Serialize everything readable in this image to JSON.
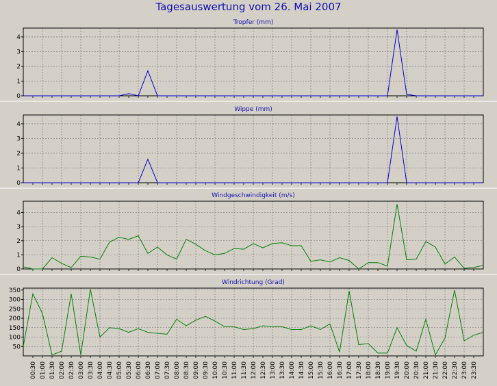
{
  "title": "Tagesauswertung vom 26. Mai 2007",
  "x_tick_labels": [
    "00:30",
    "01:00",
    "01:30",
    "02:00",
    "02:30",
    "03:00",
    "03:30",
    "04:00",
    "04:30",
    "05:00",
    "05:30",
    "06:00",
    "06:30",
    "07:00",
    "07:30",
    "08:00",
    "08:30",
    "09:00",
    "09:30",
    "10:00",
    "10:30",
    "11:00",
    "11:30",
    "12:00",
    "12:30",
    "13:00",
    "13:30",
    "14:00",
    "14:30",
    "15:00",
    "15:30",
    "16:00",
    "16:30",
    "17:00",
    "17:30",
    "18:00",
    "18:30",
    "19:00",
    "19:30",
    "20:00",
    "20:30",
    "21:00",
    "21:30",
    "22:00",
    "22:30",
    "23:00",
    "23:30"
  ],
  "colors": {
    "blue_series": "#0000cc",
    "green_series": "#008000",
    "background": "#d4d0c8",
    "title": "#1010b0"
  },
  "chart_data": [
    {
      "type": "line",
      "title": "Tropfer (mm)",
      "color": "#0000cc",
      "ylim": [
        0,
        4.6
      ],
      "yticks": [
        0,
        1,
        2,
        3,
        4
      ],
      "grid": true,
      "x": [
        "00:00",
        "00:30",
        "01:00",
        "01:30",
        "02:00",
        "02:30",
        "03:00",
        "03:30",
        "04:00",
        "04:30",
        "05:00",
        "05:30",
        "06:00",
        "06:30",
        "07:00",
        "07:30",
        "08:00",
        "08:30",
        "09:00",
        "09:30",
        "10:00",
        "10:30",
        "11:00",
        "11:30",
        "12:00",
        "12:30",
        "13:00",
        "13:30",
        "14:00",
        "14:30",
        "15:00",
        "15:30",
        "16:00",
        "16:30",
        "17:00",
        "17:30",
        "18:00",
        "18:30",
        "19:00",
        "19:30",
        "20:00",
        "20:30",
        "21:00",
        "21:30",
        "22:00",
        "22:30",
        "23:00",
        "23:30",
        "24:00"
      ],
      "values": [
        0,
        0,
        0,
        0,
        0,
        0,
        0,
        0,
        0,
        0,
        0,
        0.15,
        0,
        1.7,
        0,
        0,
        0,
        0,
        0,
        0,
        0,
        0,
        0,
        0,
        0,
        0,
        0,
        0,
        0,
        0,
        0,
        0,
        0,
        0,
        0,
        0,
        0,
        0,
        0,
        4.5,
        0.1,
        0,
        0,
        0,
        0,
        0,
        0,
        0,
        0
      ]
    },
    {
      "type": "line",
      "title": "Wippe (mm)",
      "color": "#0000cc",
      "ylim": [
        0,
        4.6
      ],
      "yticks": [
        0,
        1,
        2,
        3,
        4
      ],
      "grid": true,
      "x": [
        "00:00",
        "00:30",
        "01:00",
        "01:30",
        "02:00",
        "02:30",
        "03:00",
        "03:30",
        "04:00",
        "04:30",
        "05:00",
        "05:30",
        "06:00",
        "06:30",
        "07:00",
        "07:30",
        "08:00",
        "08:30",
        "09:00",
        "09:30",
        "10:00",
        "10:30",
        "11:00",
        "11:30",
        "12:00",
        "12:30",
        "13:00",
        "13:30",
        "14:00",
        "14:30",
        "15:00",
        "15:30",
        "16:00",
        "16:30",
        "17:00",
        "17:30",
        "18:00",
        "18:30",
        "19:00",
        "19:30",
        "20:00",
        "20:30",
        "21:00",
        "21:30",
        "22:00",
        "22:30",
        "23:00",
        "23:30",
        "24:00"
      ],
      "values": [
        0,
        0,
        0,
        0,
        0,
        0,
        0,
        0,
        0,
        0,
        0,
        0,
        0,
        1.6,
        0,
        0,
        0,
        0,
        0,
        0,
        0,
        0,
        0,
        0,
        0,
        0,
        0,
        0,
        0,
        0,
        0,
        0,
        0,
        0,
        0,
        0,
        0,
        0,
        0,
        4.5,
        0,
        0,
        0,
        0,
        0,
        0,
        0,
        0,
        0
      ]
    },
    {
      "type": "line",
      "title": "Windgeschwindigkeit (m/s)",
      "color": "#008000",
      "ylim": [
        0,
        4.8
      ],
      "yticks": [
        0,
        1,
        2,
        3,
        4
      ],
      "grid": true,
      "x": [
        "00:00",
        "00:30",
        "01:00",
        "01:30",
        "02:00",
        "02:30",
        "03:00",
        "03:30",
        "04:00",
        "04:30",
        "05:00",
        "05:30",
        "06:00",
        "06:30",
        "07:00",
        "07:30",
        "08:00",
        "08:30",
        "09:00",
        "09:30",
        "10:00",
        "10:30",
        "11:00",
        "11:30",
        "12:00",
        "12:30",
        "13:00",
        "13:30",
        "14:00",
        "14:30",
        "15:00",
        "15:30",
        "16:00",
        "16:30",
        "17:00",
        "17:30",
        "18:00",
        "18:30",
        "19:00",
        "19:30",
        "20:00",
        "20:30",
        "21:00",
        "21:30",
        "22:00",
        "22:30",
        "23:00",
        "23:30",
        "24:00"
      ],
      "values": [
        0.15,
        0,
        0,
        0.8,
        0.4,
        0.1,
        0.9,
        0.85,
        0.7,
        1.9,
        2.25,
        2.1,
        2.35,
        1.1,
        1.55,
        1,
        0.7,
        2.1,
        1.75,
        1.3,
        1,
        1.1,
        1.45,
        1.4,
        1.8,
        1.5,
        1.8,
        1.85,
        1.65,
        1.65,
        0.55,
        0.65,
        0.5,
        0.8,
        0.6,
        0,
        0.45,
        0.45,
        0.2,
        4.6,
        0.65,
        0.7,
        1.95,
        1.55,
        0.35,
        0.85,
        0.05,
        0.1,
        0.25
      ]
    },
    {
      "type": "line",
      "title": "Windrichtung (Grad)",
      "color": "#008000",
      "ylim": [
        0,
        360
      ],
      "yticks": [
        50,
        100,
        150,
        200,
        250,
        300,
        350
      ],
      "grid": true,
      "x": [
        "00:00",
        "00:30",
        "01:00",
        "01:30",
        "02:00",
        "02:30",
        "03:00",
        "03:30",
        "04:00",
        "04:30",
        "05:00",
        "05:30",
        "06:00",
        "06:30",
        "07:00",
        "07:30",
        "08:00",
        "08:30",
        "09:00",
        "09:30",
        "10:00",
        "10:30",
        "11:00",
        "11:30",
        "12:00",
        "12:30",
        "13:00",
        "13:30",
        "14:00",
        "14:30",
        "15:00",
        "15:30",
        "16:00",
        "16:30",
        "17:00",
        "17:30",
        "18:00",
        "18:30",
        "19:00",
        "19:30",
        "20:00",
        "20:30",
        "21:00",
        "21:30",
        "22:00",
        "22:30",
        "23:00",
        "23:30",
        "24:00"
      ],
      "values": [
        50,
        330,
        225,
        5,
        25,
        330,
        5,
        355,
        100,
        150,
        145,
        125,
        145,
        125,
        120,
        115,
        195,
        160,
        190,
        210,
        185,
        155,
        155,
        140,
        145,
        160,
        155,
        155,
        140,
        140,
        160,
        140,
        170,
        20,
        345,
        60,
        65,
        15,
        15,
        150,
        55,
        25,
        195,
        5,
        95,
        350,
        80,
        110,
        125
      ]
    }
  ]
}
